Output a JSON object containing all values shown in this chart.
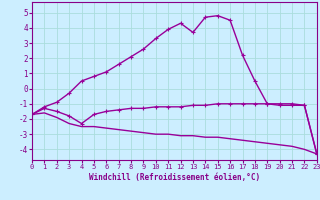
{
  "line1_x": [
    0,
    1,
    2,
    3,
    4,
    5,
    6,
    7,
    8,
    9,
    10,
    11,
    12,
    13,
    14,
    15,
    16,
    17,
    18,
    19,
    20,
    21,
    22,
    23
  ],
  "line1_y": [
    -1.7,
    -1.2,
    -0.9,
    -0.3,
    0.5,
    0.8,
    1.1,
    1.6,
    2.1,
    2.6,
    3.3,
    3.9,
    4.3,
    3.7,
    4.7,
    4.8,
    4.5,
    2.2,
    0.5,
    -1.0,
    -1.1,
    -1.1,
    -1.1,
    -4.3
  ],
  "line2_x": [
    0,
    1,
    2,
    3,
    4,
    5,
    6,
    7,
    8,
    9,
    10,
    11,
    12,
    13,
    14,
    15,
    16,
    17,
    18,
    19,
    20,
    21,
    22,
    23
  ],
  "line2_y": [
    -1.7,
    -1.3,
    -1.5,
    -1.8,
    -2.3,
    -1.7,
    -1.5,
    -1.4,
    -1.3,
    -1.3,
    -1.2,
    -1.2,
    -1.2,
    -1.1,
    -1.1,
    -1.0,
    -1.0,
    -1.0,
    -1.0,
    -1.0,
    -1.0,
    -1.0,
    -1.1,
    -4.3
  ],
  "line3_x": [
    0,
    1,
    2,
    3,
    4,
    5,
    6,
    7,
    8,
    9,
    10,
    11,
    12,
    13,
    14,
    15,
    16,
    17,
    18,
    19,
    20,
    21,
    22,
    23
  ],
  "line3_y": [
    -1.7,
    -1.6,
    -1.9,
    -2.3,
    -2.5,
    -2.5,
    -2.6,
    -2.7,
    -2.8,
    -2.9,
    -3.0,
    -3.0,
    -3.1,
    -3.1,
    -3.2,
    -3.2,
    -3.3,
    -3.4,
    -3.5,
    -3.6,
    -3.7,
    -3.8,
    -4.0,
    -4.3
  ],
  "line_color": "#990099",
  "bg_color": "#cceeff",
  "grid_color": "#aadddd",
  "xlabel": "Windchill (Refroidissement éolien,°C)",
  "tick_color": "#880088",
  "ylim": [
    -4.7,
    5.7
  ],
  "xlim": [
    0,
    23
  ],
  "yticks": [
    -4,
    -3,
    -2,
    -1,
    0,
    1,
    2,
    3,
    4,
    5
  ],
  "xticks": [
    0,
    1,
    2,
    3,
    4,
    5,
    6,
    7,
    8,
    9,
    10,
    11,
    12,
    13,
    14,
    15,
    16,
    17,
    18,
    19,
    20,
    21,
    22,
    23
  ]
}
